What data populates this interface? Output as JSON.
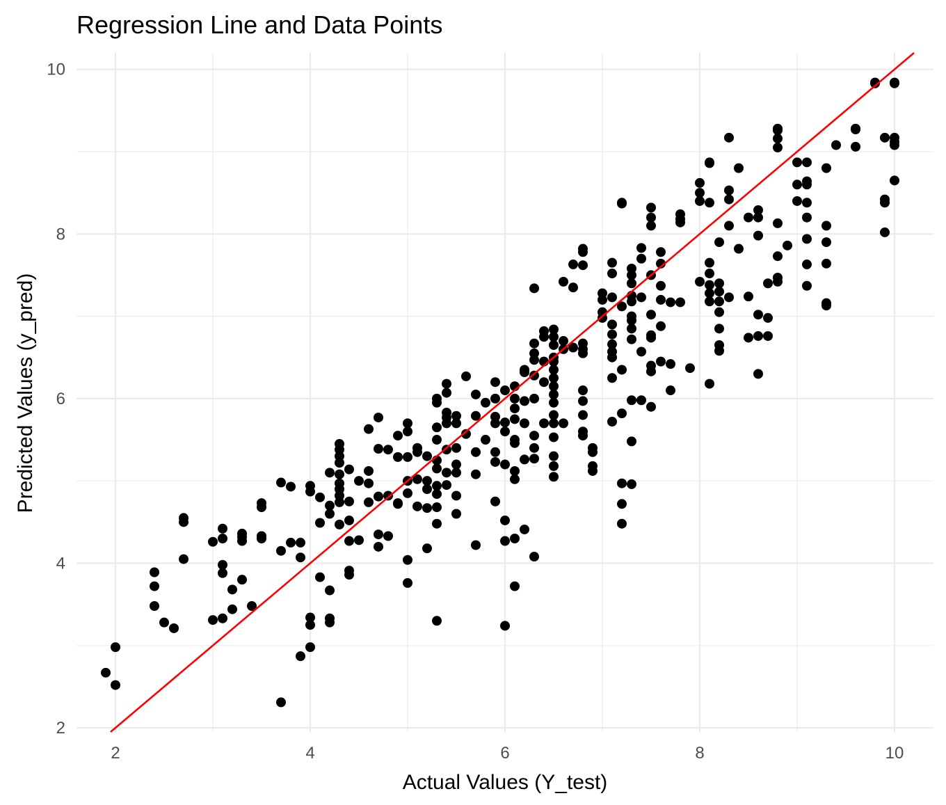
{
  "chart_data": {
    "type": "scatter",
    "title": "Regression Line and Data Points",
    "xlabel": "Actual Values (Y_test)",
    "ylabel": "Predicted Values (y_pred)",
    "xlim": [
      1.6,
      10.4
    ],
    "ylim": [
      1.95,
      10.2
    ],
    "xticks": [
      2,
      4,
      6,
      8,
      10
    ],
    "yticks": [
      2,
      4,
      6,
      8,
      10
    ],
    "grid": true,
    "colors": {
      "points": "#000000",
      "line": "#ff0000",
      "grid": "#ebebeb"
    },
    "regression_line": {
      "slope": 1.0,
      "intercept": 0.0
    },
    "points": [
      [
        1.9,
        2.67
      ],
      [
        2.0,
        2.98
      ],
      [
        2.0,
        2.52
      ],
      [
        2.4,
        3.89
      ],
      [
        2.4,
        3.72
      ],
      [
        2.4,
        3.48
      ],
      [
        2.5,
        3.28
      ],
      [
        2.6,
        3.21
      ],
      [
        2.7,
        4.55
      ],
      [
        2.7,
        4.5
      ],
      [
        2.7,
        4.05
      ],
      [
        3.0,
        4.26
      ],
      [
        3.0,
        3.31
      ],
      [
        3.1,
        4.42
      ],
      [
        3.1,
        4.3
      ],
      [
        3.1,
        3.98
      ],
      [
        3.1,
        3.88
      ],
      [
        3.1,
        3.33
      ],
      [
        3.2,
        3.68
      ],
      [
        3.2,
        3.44
      ],
      [
        3.3,
        4.36
      ],
      [
        3.3,
        4.32
      ],
      [
        3.3,
        4.27
      ],
      [
        3.3,
        3.8
      ],
      [
        3.4,
        3.48
      ],
      [
        3.5,
        4.73
      ],
      [
        3.5,
        4.68
      ],
      [
        3.5,
        4.33
      ],
      [
        3.5,
        4.3
      ],
      [
        3.7,
        4.98
      ],
      [
        3.7,
        4.15
      ],
      [
        3.7,
        2.31
      ],
      [
        3.8,
        4.93
      ],
      [
        3.8,
        4.25
      ],
      [
        3.9,
        4.25
      ],
      [
        3.9,
        4.07
      ],
      [
        3.9,
        2.87
      ],
      [
        4.0,
        4.94
      ],
      [
        4.0,
        4.87
      ],
      [
        4.0,
        3.34
      ],
      [
        4.0,
        3.25
      ],
      [
        4.0,
        2.98
      ],
      [
        4.1,
        4.8
      ],
      [
        4.1,
        4.49
      ],
      [
        4.1,
        3.83
      ],
      [
        4.2,
        5.1
      ],
      [
        4.2,
        4.7
      ],
      [
        4.2,
        4.6
      ],
      [
        4.2,
        3.67
      ],
      [
        4.2,
        3.33
      ],
      [
        4.2,
        3.28
      ],
      [
        4.3,
        5.45
      ],
      [
        4.3,
        5.38
      ],
      [
        4.3,
        5.3
      ],
      [
        4.3,
        5.22
      ],
      [
        4.3,
        5.08
      ],
      [
        4.3,
        4.97
      ],
      [
        4.3,
        4.9
      ],
      [
        4.3,
        4.82
      ],
      [
        4.3,
        4.74
      ],
      [
        4.3,
        4.47
      ],
      [
        4.4,
        5.14
      ],
      [
        4.4,
        4.75
      ],
      [
        4.4,
        4.52
      ],
      [
        4.4,
        4.27
      ],
      [
        4.4,
        3.91
      ],
      [
        4.4,
        3.86
      ],
      [
        4.5,
        5.0
      ],
      [
        4.5,
        4.28
      ],
      [
        4.6,
        5.63
      ],
      [
        4.6,
        5.12
      ],
      [
        4.6,
        4.97
      ],
      [
        4.6,
        4.74
      ],
      [
        4.7,
        5.77
      ],
      [
        4.7,
        5.39
      ],
      [
        4.7,
        4.81
      ],
      [
        4.7,
        4.35
      ],
      [
        4.7,
        4.2
      ],
      [
        4.8,
        5.38
      ],
      [
        4.8,
        4.82
      ],
      [
        4.8,
        4.33
      ],
      [
        4.9,
        5.55
      ],
      [
        4.9,
        5.29
      ],
      [
        4.9,
        4.73
      ],
      [
        4.9,
        4.72
      ],
      [
        5.0,
        5.7
      ],
      [
        5.0,
        5.6
      ],
      [
        5.0,
        5.29
      ],
      [
        5.0,
        5.0
      ],
      [
        5.0,
        4.85
      ],
      [
        5.0,
        4.04
      ],
      [
        5.0,
        3.76
      ],
      [
        5.1,
        5.4
      ],
      [
        5.1,
        5.35
      ],
      [
        5.1,
        5.02
      ],
      [
        5.1,
        4.69
      ],
      [
        5.2,
        5.3
      ],
      [
        5.2,
        5.0
      ],
      [
        5.2,
        4.9
      ],
      [
        5.2,
        4.67
      ],
      [
        5.2,
        4.18
      ],
      [
        5.3,
        6.0
      ],
      [
        5.3,
        5.95
      ],
      [
        5.3,
        5.65
      ],
      [
        5.3,
        5.5
      ],
      [
        5.3,
        5.25
      ],
      [
        5.3,
        5.15
      ],
      [
        5.3,
        4.94
      ],
      [
        5.3,
        4.84
      ],
      [
        5.3,
        4.68
      ],
      [
        5.3,
        4.48
      ],
      [
        5.3,
        3.3
      ],
      [
        5.4,
        6.18
      ],
      [
        5.4,
        6.07
      ],
      [
        5.4,
        5.83
      ],
      [
        5.4,
        5.77
      ],
      [
        5.4,
        5.7
      ],
      [
        5.4,
        5.38
      ],
      [
        5.4,
        5.1
      ],
      [
        5.4,
        4.95
      ],
      [
        5.5,
        5.79
      ],
      [
        5.5,
        5.7
      ],
      [
        5.5,
        5.4
      ],
      [
        5.5,
        5.2
      ],
      [
        5.5,
        5.1
      ],
      [
        5.5,
        4.82
      ],
      [
        5.5,
        4.6
      ],
      [
        5.6,
        6.27
      ],
      [
        5.6,
        5.57
      ],
      [
        5.7,
        6.05
      ],
      [
        5.7,
        5.79
      ],
      [
        5.7,
        5.35
      ],
      [
        5.7,
        5.08
      ],
      [
        5.7,
        4.22
      ],
      [
        5.8,
        5.95
      ],
      [
        5.8,
        5.5
      ],
      [
        5.9,
        6.2
      ],
      [
        5.9,
        6.0
      ],
      [
        5.9,
        5.78
      ],
      [
        5.9,
        5.7
      ],
      [
        5.9,
        5.35
      ],
      [
        5.9,
        5.23
      ],
      [
        5.9,
        4.75
      ],
      [
        6.0,
        6.1
      ],
      [
        6.0,
        5.71
      ],
      [
        6.0,
        5.6
      ],
      [
        6.0,
        5.2
      ],
      [
        6.0,
        4.52
      ],
      [
        6.0,
        4.27
      ],
      [
        6.0,
        3.24
      ],
      [
        6.1,
        6.15
      ],
      [
        6.1,
        6.0
      ],
      [
        6.1,
        5.88
      ],
      [
        6.1,
        5.75
      ],
      [
        6.1,
        5.5
      ],
      [
        6.1,
        5.46
      ],
      [
        6.1,
        5.12
      ],
      [
        6.1,
        5.02
      ],
      [
        6.1,
        4.3
      ],
      [
        6.1,
        3.72
      ],
      [
        6.2,
        6.35
      ],
      [
        6.2,
        6.32
      ],
      [
        6.2,
        5.97
      ],
      [
        6.2,
        5.7
      ],
      [
        6.2,
        5.26
      ],
      [
        6.2,
        4.41
      ],
      [
        6.3,
        7.34
      ],
      [
        6.3,
        6.67
      ],
      [
        6.3,
        6.55
      ],
      [
        6.3,
        6.47
      ],
      [
        6.3,
        6.28
      ],
      [
        6.3,
        6.0
      ],
      [
        6.3,
        5.55
      ],
      [
        6.3,
        5.4
      ],
      [
        6.3,
        5.27
      ],
      [
        6.3,
        4.08
      ],
      [
        6.4,
        6.82
      ],
      [
        6.4,
        6.75
      ],
      [
        6.4,
        6.45
      ],
      [
        6.4,
        6.2
      ],
      [
        6.4,
        5.7
      ],
      [
        6.5,
        6.84
      ],
      [
        6.5,
        6.75
      ],
      [
        6.5,
        6.65
      ],
      [
        6.5,
        6.5
      ],
      [
        6.5,
        6.45
      ],
      [
        6.5,
        6.35
      ],
      [
        6.5,
        6.25
      ],
      [
        6.5,
        6.15
      ],
      [
        6.5,
        6.05
      ],
      [
        6.5,
        5.95
      ],
      [
        6.5,
        5.8
      ],
      [
        6.5,
        5.7
      ],
      [
        6.5,
        5.53
      ],
      [
        6.5,
        5.3
      ],
      [
        6.5,
        5.18
      ],
      [
        6.5,
        5.05
      ],
      [
        6.6,
        7.42
      ],
      [
        6.6,
        6.7
      ],
      [
        6.6,
        6.6
      ],
      [
        6.6,
        5.7
      ],
      [
        6.7,
        7.63
      ],
      [
        6.7,
        7.35
      ],
      [
        6.7,
        6.62
      ],
      [
        6.8,
        7.82
      ],
      [
        6.8,
        7.78
      ],
      [
        6.8,
        7.62
      ],
      [
        6.8,
        6.67
      ],
      [
        6.8,
        6.6
      ],
      [
        6.8,
        6.55
      ],
      [
        6.8,
        6.1
      ],
      [
        6.8,
        5.97
      ],
      [
        6.8,
        5.8
      ],
      [
        6.8,
        5.6
      ],
      [
        6.8,
        5.55
      ],
      [
        6.9,
        5.4
      ],
      [
        6.9,
        5.35
      ],
      [
        6.9,
        5.18
      ],
      [
        6.9,
        5.12
      ],
      [
        7.0,
        7.28
      ],
      [
        7.0,
        7.2
      ],
      [
        7.0,
        7.05
      ],
      [
        7.0,
        6.98
      ],
      [
        7.1,
        7.65
      ],
      [
        7.1,
        7.52
      ],
      [
        7.1,
        7.23
      ],
      [
        7.1,
        6.9
      ],
      [
        7.1,
        6.78
      ],
      [
        7.1,
        6.66
      ],
      [
        7.1,
        6.57
      ],
      [
        7.1,
        6.5
      ],
      [
        7.1,
        6.25
      ],
      [
        7.1,
        5.72
      ],
      [
        7.2,
        8.38
      ],
      [
        7.2,
        8.37
      ],
      [
        7.2,
        7.12
      ],
      [
        7.2,
        6.35
      ],
      [
        7.2,
        5.82
      ],
      [
        7.2,
        4.97
      ],
      [
        7.2,
        4.72
      ],
      [
        7.2,
        4.48
      ],
      [
        7.3,
        7.58
      ],
      [
        7.3,
        7.5
      ],
      [
        7.3,
        7.4
      ],
      [
        7.3,
        7.25
      ],
      [
        7.3,
        7.18
      ],
      [
        7.3,
        7.0
      ],
      [
        7.3,
        6.95
      ],
      [
        7.3,
        6.85
      ],
      [
        7.3,
        6.72
      ],
      [
        7.3,
        5.98
      ],
      [
        7.3,
        5.48
      ],
      [
        7.3,
        4.96
      ],
      [
        7.4,
        7.83
      ],
      [
        7.4,
        7.7
      ],
      [
        7.4,
        7.23
      ],
      [
        7.4,
        6.57
      ],
      [
        7.4,
        5.98
      ],
      [
        7.5,
        8.32
      ],
      [
        7.5,
        8.2
      ],
      [
        7.5,
        8.1
      ],
      [
        7.5,
        7.5
      ],
      [
        7.5,
        7.02
      ],
      [
        7.5,
        6.77
      ],
      [
        7.5,
        6.74
      ],
      [
        7.5,
        6.4
      ],
      [
        7.5,
        6.33
      ],
      [
        7.5,
        5.9
      ],
      [
        7.6,
        7.78
      ],
      [
        7.6,
        7.64
      ],
      [
        7.6,
        7.37
      ],
      [
        7.6,
        7.2
      ],
      [
        7.6,
        6.88
      ],
      [
        7.6,
        6.45
      ],
      [
        7.7,
        7.17
      ],
      [
        7.7,
        6.42
      ],
      [
        7.7,
        6.1
      ],
      [
        7.8,
        8.24
      ],
      [
        7.8,
        8.18
      ],
      [
        7.8,
        8.14
      ],
      [
        7.8,
        7.17
      ],
      [
        7.9,
        6.37
      ],
      [
        8.0,
        8.62
      ],
      [
        8.0,
        8.5
      ],
      [
        8.0,
        8.4
      ],
      [
        8.0,
        7.42
      ],
      [
        8.1,
        8.87
      ],
      [
        8.1,
        8.86
      ],
      [
        8.1,
        8.38
      ],
      [
        8.1,
        7.65
      ],
      [
        8.1,
        7.52
      ],
      [
        8.1,
        7.38
      ],
      [
        8.1,
        7.28
      ],
      [
        8.1,
        7.18
      ],
      [
        8.1,
        6.18
      ],
      [
        8.2,
        7.9
      ],
      [
        8.2,
        7.4
      ],
      [
        8.2,
        7.3
      ],
      [
        8.2,
        7.18
      ],
      [
        8.2,
        7.05
      ],
      [
        8.2,
        6.85
      ],
      [
        8.2,
        6.65
      ],
      [
        8.2,
        6.58
      ],
      [
        8.3,
        9.17
      ],
      [
        8.3,
        8.53
      ],
      [
        8.3,
        8.42
      ],
      [
        8.3,
        8.1
      ],
      [
        8.3,
        7.23
      ],
      [
        8.4,
        8.8
      ],
      [
        8.4,
        7.82
      ],
      [
        8.5,
        8.2
      ],
      [
        8.5,
        7.24
      ],
      [
        8.5,
        6.74
      ],
      [
        8.6,
        8.29
      ],
      [
        8.6,
        8.2
      ],
      [
        8.6,
        7.98
      ],
      [
        8.6,
        7.02
      ],
      [
        8.6,
        6.76
      ],
      [
        8.6,
        6.3
      ],
      [
        8.7,
        7.4
      ],
      [
        8.7,
        6.98
      ],
      [
        8.7,
        6.76
      ],
      [
        8.8,
        9.28
      ],
      [
        8.8,
        9.26
      ],
      [
        8.8,
        9.16
      ],
      [
        8.8,
        9.05
      ],
      [
        8.8,
        8.13
      ],
      [
        8.8,
        7.73
      ],
      [
        8.8,
        7.47
      ],
      [
        8.8,
        7.42
      ],
      [
        8.9,
        7.86
      ],
      [
        9.0,
        8.87
      ],
      [
        9.0,
        8.6
      ],
      [
        9.0,
        8.4
      ],
      [
        9.1,
        8.87
      ],
      [
        9.1,
        8.64
      ],
      [
        9.1,
        8.6
      ],
      [
        9.1,
        8.38
      ],
      [
        9.1,
        8.2
      ],
      [
        9.1,
        7.94
      ],
      [
        9.1,
        7.63
      ],
      [
        9.1,
        7.37
      ],
      [
        9.3,
        8.8
      ],
      [
        9.3,
        8.1
      ],
      [
        9.3,
        7.9
      ],
      [
        9.3,
        7.64
      ],
      [
        9.3,
        7.16
      ],
      [
        9.3,
        7.13
      ],
      [
        9.4,
        9.08
      ],
      [
        9.6,
        9.28
      ],
      [
        9.6,
        9.27
      ],
      [
        9.6,
        9.06
      ],
      [
        9.8,
        9.84
      ],
      [
        9.8,
        9.83
      ],
      [
        9.9,
        9.17
      ],
      [
        9.9,
        8.42
      ],
      [
        9.9,
        8.38
      ],
      [
        9.9,
        8.02
      ],
      [
        10.0,
        9.84
      ],
      [
        10.0,
        9.83
      ],
      [
        10.0,
        9.17
      ],
      [
        10.0,
        9.12
      ],
      [
        10.0,
        9.08
      ],
      [
        10.0,
        8.65
      ]
    ]
  }
}
